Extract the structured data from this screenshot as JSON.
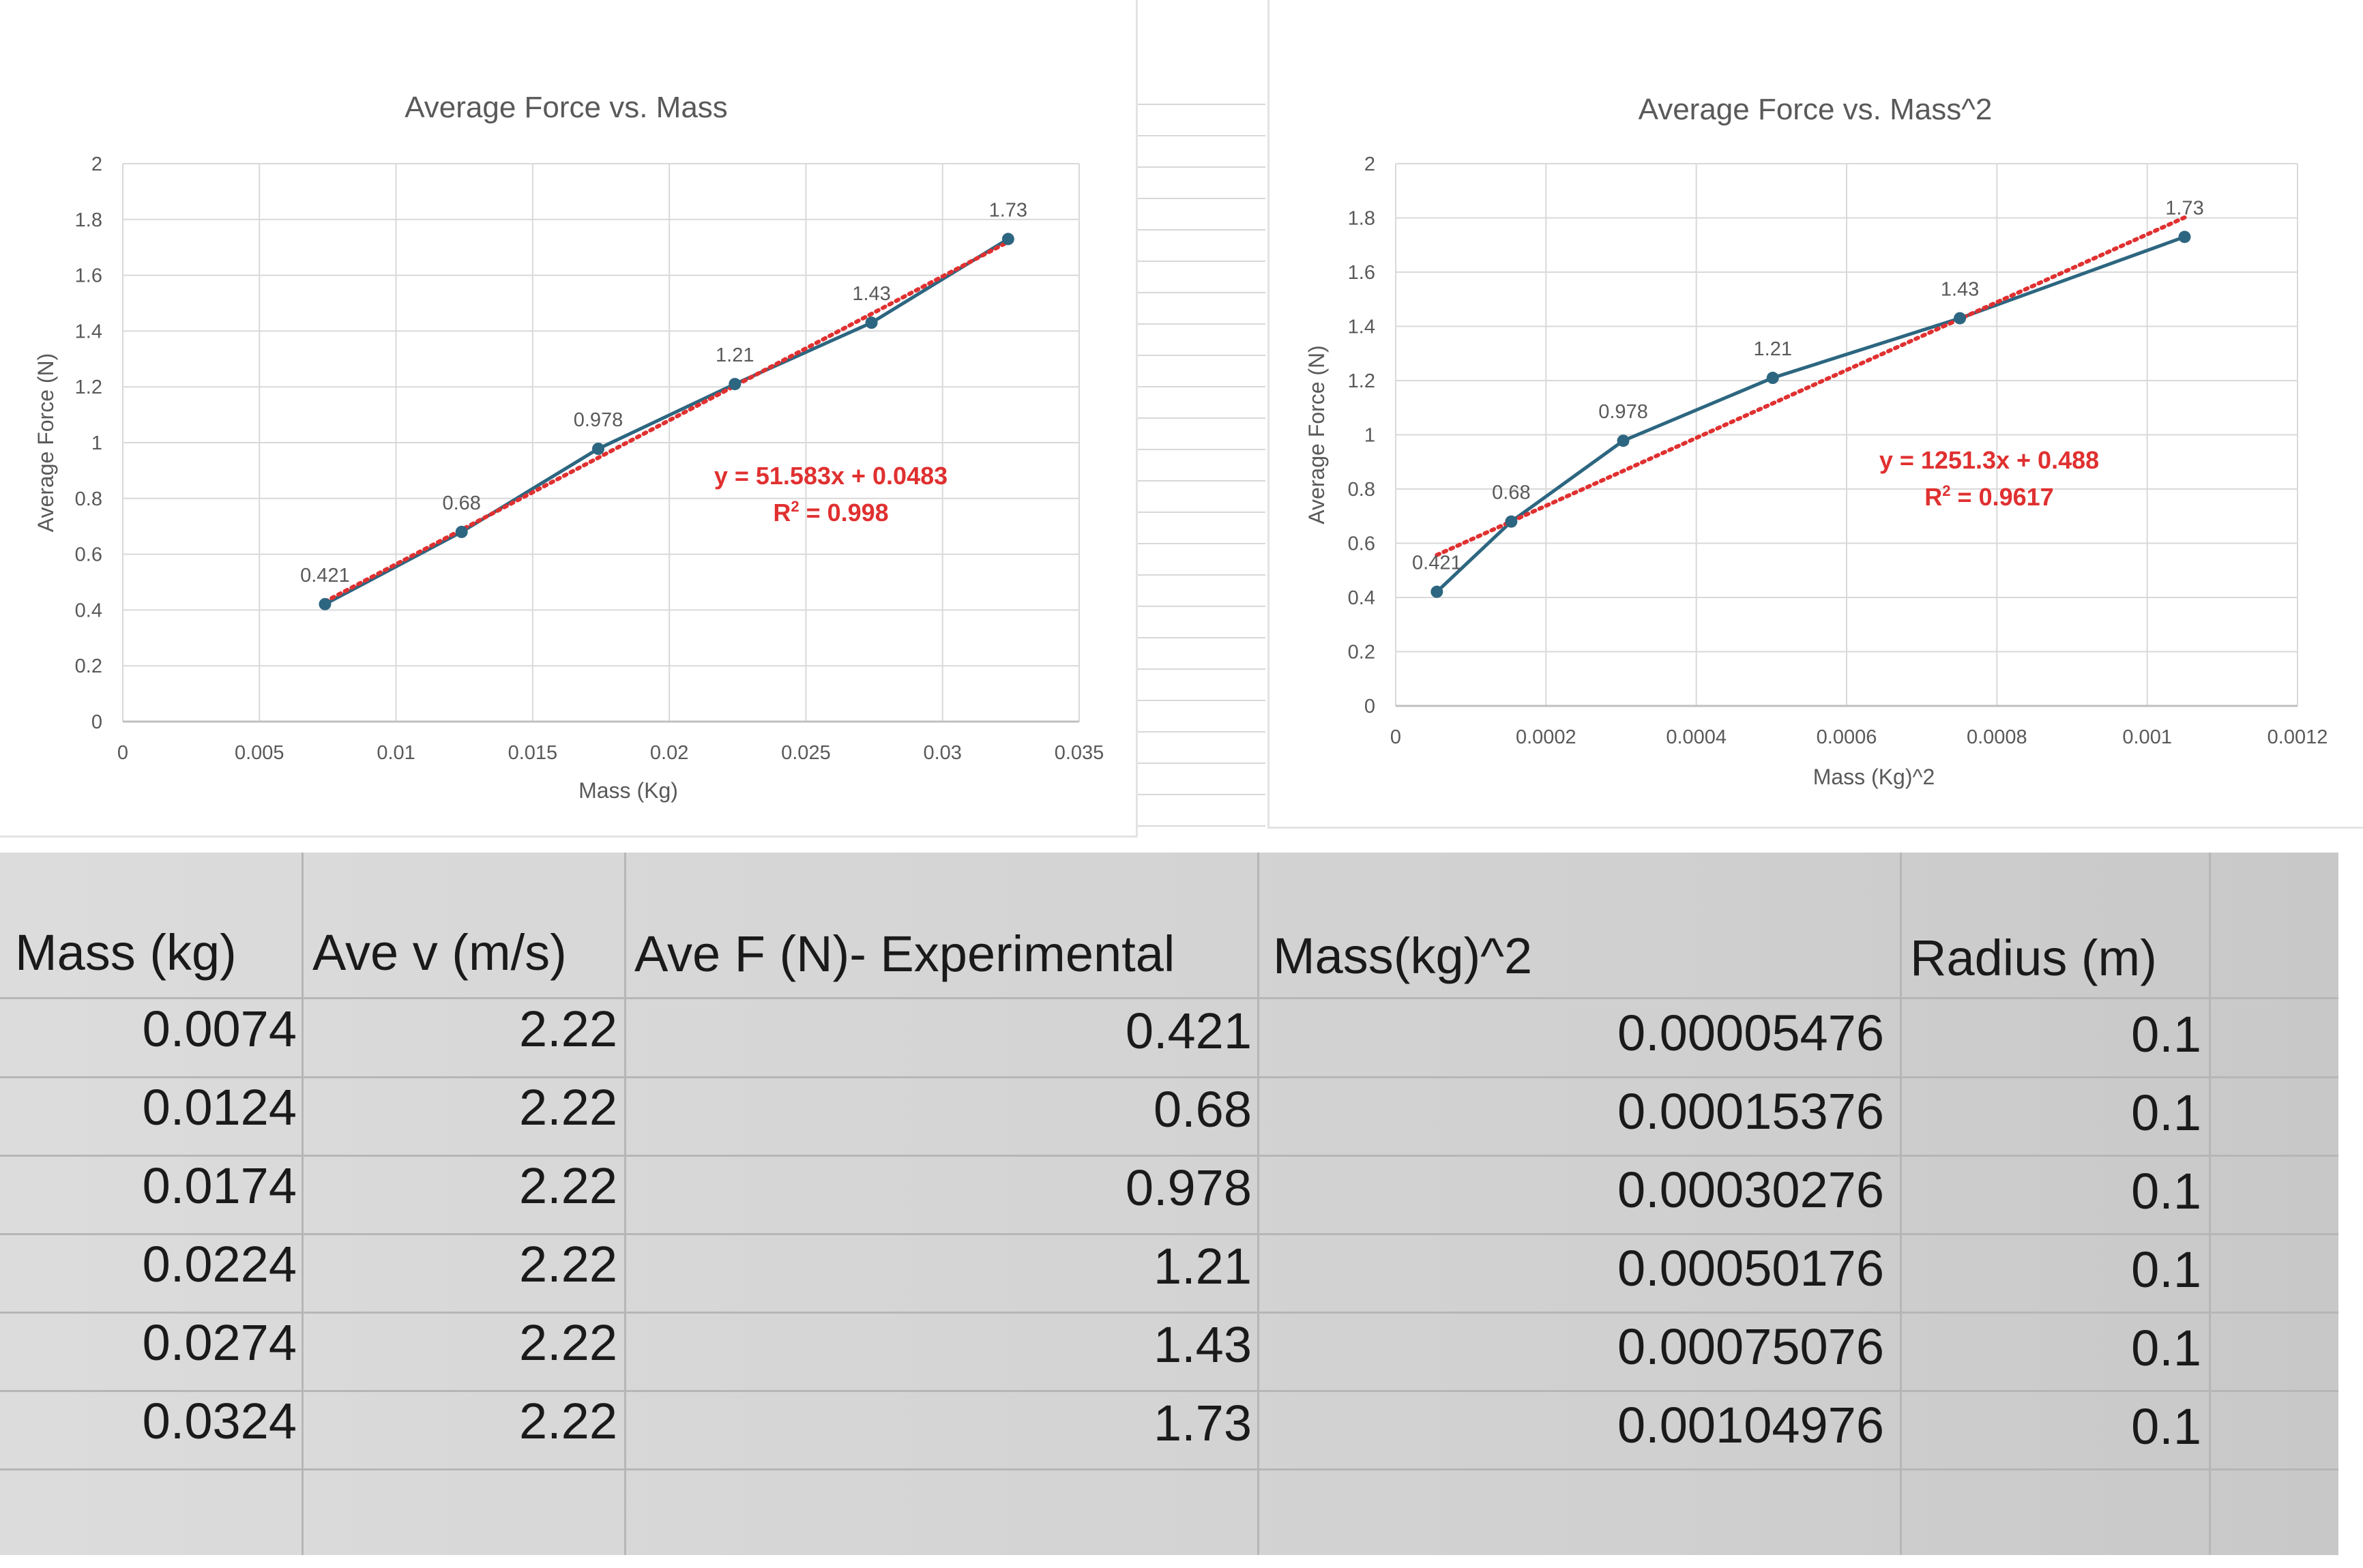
{
  "chart_data": [
    {
      "type": "scatter",
      "title": "Average Force vs. Mass",
      "xlabel": "Mass (Kg)",
      "ylabel": "Average Force (N)",
      "xlim": [
        0,
        0.035
      ],
      "ylim": [
        0,
        2
      ],
      "xticks": [
        "0",
        "0.005",
        "0.01",
        "0.015",
        "0.02",
        "0.025",
        "0.03",
        "0.035"
      ],
      "yticks": [
        "0",
        "0.2",
        "0.4",
        "0.6",
        "0.8",
        "1",
        "1.2",
        "1.4",
        "1.6",
        "1.8",
        "2"
      ],
      "grid": true,
      "series": [
        {
          "x": [
            0.0074,
            0.0124,
            0.0174,
            0.0224,
            0.0274,
            0.0324
          ],
          "y": [
            0.421,
            0.68,
            0.978,
            1.21,
            1.43,
            1.73
          ],
          "labels": [
            "0.421",
            "0.68",
            "0.978",
            "1.21",
            "1.43",
            "1.73"
          ],
          "color": "#2d6680"
        }
      ],
      "trendline": {
        "type": "linear",
        "slope": 51.583,
        "intercept": 0.0483,
        "color": "#e03030",
        "equation": "y = 51.583x + 0.0483",
        "r2_prefix": "R",
        "r2_value": " = 0.998"
      }
    },
    {
      "type": "scatter",
      "title": "Average Force vs. Mass^2",
      "xlabel": "Mass (Kg)^2",
      "ylabel": "Average Force (N)",
      "xlim": [
        0,
        0.0012
      ],
      "ylim": [
        0,
        2
      ],
      "xticks": [
        "0",
        "0.0002",
        "0.0004",
        "0.0006",
        "0.0008",
        "0.001",
        "0.0012"
      ],
      "yticks": [
        "0",
        "0.2",
        "0.4",
        "0.6",
        "0.8",
        "1",
        "1.2",
        "1.4",
        "1.6",
        "1.8",
        "2"
      ],
      "grid": true,
      "series": [
        {
          "x": [
            5.476e-05,
            0.00015376,
            0.00030276,
            0.00050176,
            0.00075076,
            0.00104976
          ],
          "y": [
            0.421,
            0.68,
            0.978,
            1.21,
            1.43,
            1.73
          ],
          "labels": [
            "0.421",
            "0.68",
            "0.978",
            "1.21",
            "1.43",
            "1.73"
          ],
          "color": "#2d6680"
        }
      ],
      "trendline": {
        "type": "linear",
        "slope": 1251.3,
        "intercept": 0.488,
        "color": "#e03030",
        "equation": "y = 1251.3x + 0.488",
        "r2_prefix": "R",
        "r2_value": " = 0.9617"
      }
    }
  ],
  "table": {
    "headers": [
      "Mass (kg)",
      "Ave v (m/s)",
      "Ave F (N)-  Experimental",
      "Mass(kg)^2",
      "Radius (m)"
    ],
    "rows": [
      [
        "0.0074",
        "2.22",
        "0.421",
        "0.00005476",
        "0.1"
      ],
      [
        "0.0124",
        "2.22",
        "0.68",
        "0.00015376",
        "0.1"
      ],
      [
        "0.0174",
        "2.22",
        "0.978",
        "0.00030276",
        "0.1"
      ],
      [
        "0.0224",
        "2.22",
        "1.21",
        "0.00050176",
        "0.1"
      ],
      [
        "0.0274",
        "2.22",
        "1.43",
        "0.00075076",
        "0.1"
      ],
      [
        "0.0324",
        "2.22",
        "1.73",
        "0.00104976",
        "0.1"
      ]
    ]
  }
}
